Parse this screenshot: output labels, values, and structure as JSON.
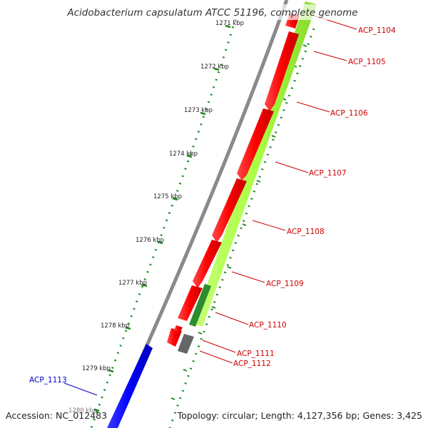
{
  "title": "Acidobacterium capsulatum ATCC 51196, complete genome",
  "footer": {
    "accession": "Accession: NC_012483",
    "summary": "Topology: circular; Length: 4,127,356 bp; Genes: 3,425"
  },
  "scale_labels": [
    "1271 kbp",
    "1272 kbp",
    "1273 kbp",
    "1274 kbp",
    "1275 kbp",
    "1276 kbp",
    "1277 kbp",
    "1278 kbp",
    "1279 kbp",
    "1280 kbp"
  ],
  "gene_labels": [
    {
      "text": "ACP_1104",
      "color": "#cc0000"
    },
    {
      "text": "ACP_1105",
      "color": "#cc0000"
    },
    {
      "text": "ACP_1106",
      "color": "#cc0000"
    },
    {
      "text": "ACP_1107",
      "color": "#cc0000"
    },
    {
      "text": "ACP_1108",
      "color": "#cc0000"
    },
    {
      "text": "ACP_1109",
      "color": "#cc0000"
    },
    {
      "text": "ACP_1110",
      "color": "#cc0000"
    },
    {
      "text": "ACP_1111",
      "color": "#cc0000"
    },
    {
      "text": "ACP_1112",
      "color": "#cc0000"
    },
    {
      "text": "ACP_1113",
      "color": "#0000cc"
    }
  ],
  "colors": {
    "cds_forward": "#ff0000",
    "gc_band": "#aaff44",
    "gc_band_dark": "#2e8b2e",
    "cds_reverse": "#0000ff",
    "backbone": "#888888",
    "ticks": "#228b22",
    "other_feature": "#666666"
  }
}
